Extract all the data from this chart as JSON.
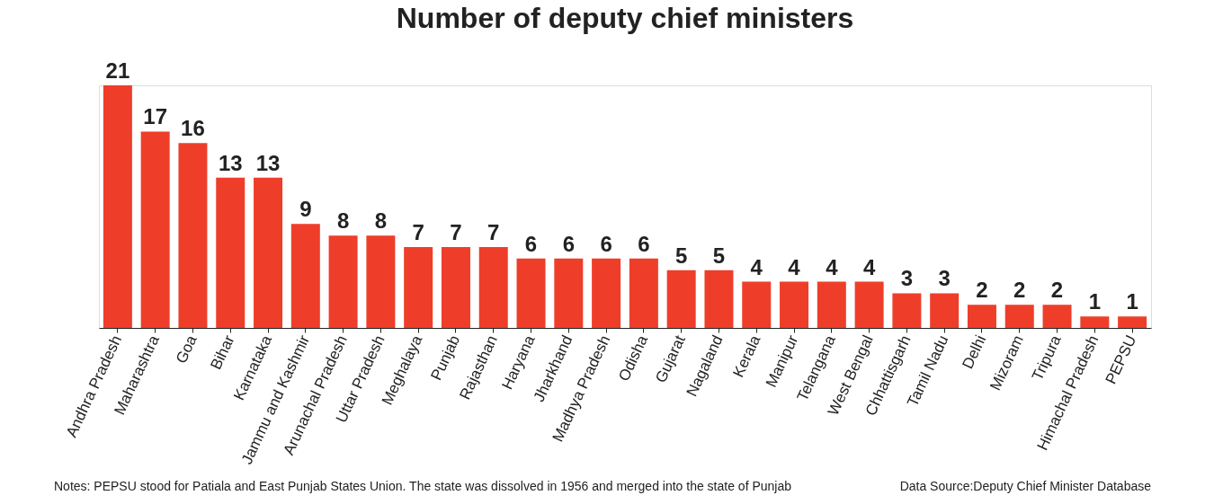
{
  "chart_data": {
    "type": "bar",
    "title": "Number of deputy chief ministers",
    "categories": [
      "Andhra Pradesh",
      "Maharashtra",
      "Goa",
      "Bihar",
      "Karnataka",
      "Jammu and Kashmir",
      "Arunachal Pradesh",
      "Uttar Pradesh",
      "Meghalaya",
      "Punjab",
      "Rajasthan",
      "Haryana",
      "Jharkhand",
      "Madhya Pradesh",
      "Odisha",
      "Gujarat",
      "Nagaland",
      "Kerala",
      "Manipur",
      "Telangana",
      "West Bengal",
      "Chhattisgarh",
      "Tamil Nadu",
      "Delhi",
      "Mizoram",
      "Tripura",
      "Himachal Pradesh",
      "PEPSU"
    ],
    "values": [
      21,
      17,
      16,
      13,
      13,
      9,
      8,
      8,
      7,
      7,
      7,
      6,
      6,
      6,
      6,
      5,
      5,
      4,
      4,
      4,
      4,
      3,
      3,
      2,
      2,
      2,
      1,
      1
    ],
    "color": "#ee3e2a",
    "data_labels": true,
    "grid": false,
    "annotations": [
      "Notes: PEPSU stood for Patiala and East Punjab States Union. The state was dissolved in 1956 and merged into the state of Punjab",
      "Data Source:Deputy Chief Minister Database"
    ]
  }
}
